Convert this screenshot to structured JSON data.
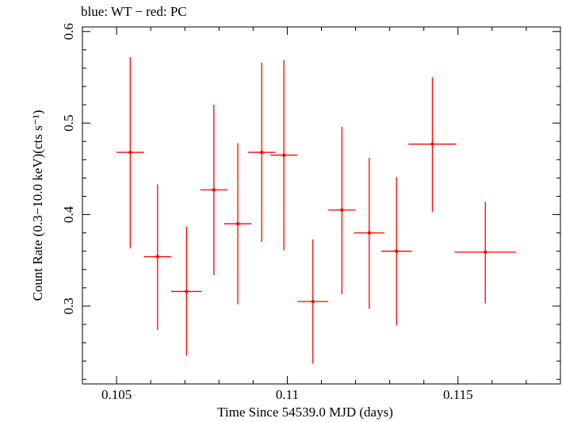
{
  "chart_data": {
    "type": "scatter",
    "title": "blue: WT − red: PC",
    "xlabel": "Time Since 54539.0 MJD (days)",
    "ylabel": "Count Rate (0.3−10.0 keV)(cts s⁻¹)",
    "xlim": [
      0.104,
      0.118
    ],
    "ylim": [
      0.215,
      0.605
    ],
    "xticks": [
      0.105,
      0.11,
      0.115
    ],
    "xtick_labels": [
      "0.105",
      "0.11",
      "0.115"
    ],
    "yticks": [
      0.3,
      0.4,
      0.5,
      0.6
    ],
    "ytick_labels": [
      "0.3",
      "0.4",
      "0.5",
      "0.6"
    ],
    "grid": false,
    "colors": {
      "PC": "#ff0000",
      "WT": "#0000ff"
    },
    "series": [
      {
        "name": "PC",
        "points": [
          {
            "x": 0.1054,
            "y": 0.468,
            "xerr": 0.0004,
            "ylo": 0.363,
            "yhi": 0.572
          },
          {
            "x": 0.1062,
            "y": 0.354,
            "xerr": 0.0004,
            "ylo": 0.274,
            "yhi": 0.433
          },
          {
            "x": 0.10705,
            "y": 0.316,
            "xerr": 0.00045,
            "ylo": 0.246,
            "yhi": 0.387
          },
          {
            "x": 0.10785,
            "y": 0.427,
            "xerr": 0.0004,
            "ylo": 0.334,
            "yhi": 0.52
          },
          {
            "x": 0.10855,
            "y": 0.39,
            "xerr": 0.0004,
            "ylo": 0.302,
            "yhi": 0.478
          },
          {
            "x": 0.10925,
            "y": 0.468,
            "xerr": 0.0004,
            "ylo": 0.37,
            "yhi": 0.566
          },
          {
            "x": 0.1099,
            "y": 0.465,
            "xerr": 0.0004,
            "ylo": 0.361,
            "yhi": 0.569
          },
          {
            "x": 0.11075,
            "y": 0.305,
            "xerr": 0.00045,
            "ylo": 0.237,
            "yhi": 0.373
          },
          {
            "x": 0.1116,
            "y": 0.405,
            "xerr": 0.0004,
            "ylo": 0.313,
            "yhi": 0.496
          },
          {
            "x": 0.1124,
            "y": 0.38,
            "xerr": 0.00045,
            "ylo": 0.297,
            "yhi": 0.462
          },
          {
            "x": 0.1132,
            "y": 0.36,
            "xerr": 0.00045,
            "ylo": 0.279,
            "yhi": 0.441
          },
          {
            "x": 0.11425,
            "y": 0.477,
            "xerr": 0.0007,
            "ylo": 0.403,
            "yhi": 0.55
          },
          {
            "x": 0.1158,
            "y": 0.359,
            "xerr": 0.0009,
            "ylo": 0.303,
            "yhi": 0.414
          }
        ]
      }
    ]
  }
}
